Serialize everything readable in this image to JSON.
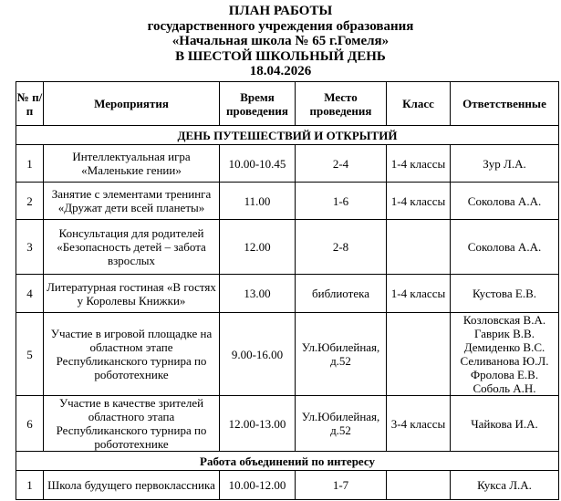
{
  "title": {
    "line1": "ПЛАН РАБОТЫ",
    "line2": "государственного учреждения образования",
    "line3": "«Начальная школа № 65 г.Гомеля»",
    "line4": "В ШЕСТОЙ ШКОЛЬНЫЙ ДЕНЬ",
    "date": "18.04.2026"
  },
  "headers": [
    "№ п/п",
    "Мероприятия",
    "Время проведения",
    "Место проведения",
    "Класс",
    "Ответственные"
  ],
  "sections": [
    {
      "title": "ДЕНЬ ПУТЕШЕСТВИЙ И ОТКРЫТИЙ",
      "rows": [
        {
          "num": "1",
          "event": "Интеллектуальная игра «Маленькие гении»",
          "time": "10.00-10.45",
          "place": "2-4",
          "class": "1-4 классы",
          "responsible": "Зур Л.А."
        },
        {
          "num": "2",
          "event": "Занятие с элементами тренинга «Дружат дети всей планеты»",
          "time": "11.00",
          "place": "1-6",
          "class": "1-4 классы",
          "responsible": "Соколова А.А."
        },
        {
          "num": "3",
          "event": "Консультация для родителей «Безопасность детей – забота взрослых",
          "time": "12.00",
          "place": "2-8",
          "class": "",
          "responsible": "Соколова А.А."
        },
        {
          "num": "4",
          "event": "Литературная гостиная «В гостях у Королевы Книжки»",
          "time": "13.00",
          "place": "библиотека",
          "class": "1-4 классы",
          "responsible": "Кустова Е.В."
        },
        {
          "num": "5",
          "event": "Участие в игровой площадке на областном этапе Республиканского турнира по робототехнике",
          "time": "9.00-16.00",
          "place": "Ул.Юбилейная, д.52",
          "class": "",
          "responsible": "Козловская В.А. Гаврик В.В. Демиденко В.С. Селиванова Ю.Л. Фролова Е.В. Соболь А.Н."
        },
        {
          "num": "6",
          "event": "Участие в качестве зрителей областного этапа Республиканского турнира по робототехнике",
          "time": "12.00-13.00",
          "place": "Ул.Юбилейная, д.52",
          "class": "3-4 классы",
          "responsible": "Чайкова И.А."
        }
      ]
    },
    {
      "title": "Работа объединений по интересу",
      "rows": [
        {
          "num": "1",
          "event": "Школа будущего первоклассника",
          "time": "10.00-12.00",
          "place": "1-7",
          "class": "",
          "responsible": "Кукса Л.А."
        }
      ]
    }
  ]
}
